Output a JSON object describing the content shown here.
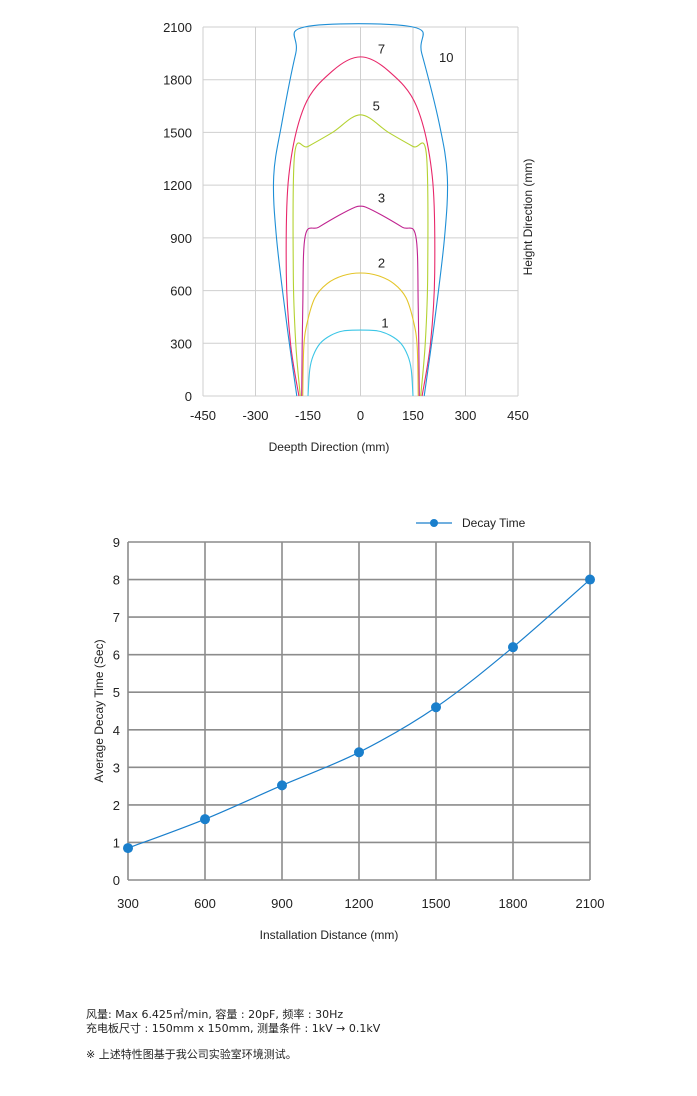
{
  "chart_data": [
    {
      "type": "line",
      "xlabel": "Deepth Direction (mm)",
      "ylabel": "Height Direction (mm)",
      "xlim": [
        -450,
        450
      ],
      "ylim": [
        0,
        2100
      ],
      "x_ticks": [
        "-450",
        "-300",
        "-150",
        "0",
        "150",
        "300",
        "450"
      ],
      "x_tick_values": [
        -450,
        -300,
        -150,
        0,
        150,
        300,
        450
      ],
      "y_ticks": [
        "0",
        "300",
        "600",
        "900",
        "1200",
        "1500",
        "1800",
        "2100"
      ],
      "y_tick_values": [
        0,
        300,
        600,
        900,
        1200,
        1500,
        1800,
        2100
      ],
      "grid": true,
      "series": [
        {
          "name": "1",
          "color": "#3cc6e6",
          "x": [
            -150,
            -145,
            -135,
            -115,
            -85,
            -50,
            0,
            50,
            85,
            115,
            135,
            145,
            150
          ],
          "y": [
            0,
            150,
            230,
            300,
            345,
            370,
            375,
            370,
            345,
            300,
            230,
            150,
            0
          ]
        },
        {
          "name": "2",
          "color": "#e4c52a",
          "x": [
            -165,
            -162,
            -152,
            -130,
            -95,
            -50,
            0,
            50,
            95,
            130,
            152,
            162,
            165
          ],
          "y": [
            0,
            280,
            420,
            560,
            640,
            685,
            700,
            685,
            640,
            560,
            420,
            280,
            0
          ]
        },
        {
          "name": "3",
          "color": "#c02490",
          "x": [
            -168,
            -165,
            -158,
            -120,
            -60,
            -15,
            0,
            15,
            60,
            120,
            158,
            165,
            168
          ],
          "y": [
            0,
            500,
            910,
            960,
            1030,
            1075,
            1080,
            1075,
            1030,
            960,
            910,
            500,
            0
          ]
        },
        {
          "name": "5",
          "color": "#b4d232",
          "x": [
            -172,
            -185,
            -192,
            -188,
            -150,
            -80,
            0,
            80,
            150,
            188,
            192,
            185,
            172
          ],
          "y": [
            0,
            300,
            700,
            1380,
            1420,
            1500,
            1600,
            1500,
            1420,
            1380,
            700,
            300,
            0
          ]
        },
        {
          "name": "7",
          "color": "#e8286a",
          "x": [
            -176,
            -200,
            -212,
            -205,
            -160,
            -80,
            0,
            80,
            160,
            205,
            212,
            200,
            176
          ],
          "y": [
            0,
            300,
            700,
            1250,
            1650,
            1850,
            1930,
            1850,
            1650,
            1250,
            700,
            300,
            0
          ]
        },
        {
          "name": "10",
          "color": "#1f8fd6",
          "x": [
            -182,
            -210,
            -240,
            -248,
            -225,
            -185,
            -160,
            150,
            175,
            225,
            248,
            240,
            210,
            182
          ],
          "y": [
            0,
            400,
            900,
            1250,
            1550,
            1950,
            2100,
            2100,
            1950,
            1550,
            1250,
            900,
            400,
            0
          ]
        }
      ],
      "curve_labels": [
        {
          "text": "1",
          "x": 70,
          "y": 390
        },
        {
          "text": "2",
          "x": 60,
          "y": 730
        },
        {
          "text": "3",
          "x": 60,
          "y": 1100
        },
        {
          "text": "5",
          "x": 45,
          "y": 1625
        },
        {
          "text": "7",
          "x": 60,
          "y": 1950
        },
        {
          "text": "10",
          "x": 245,
          "y": 1900
        }
      ]
    },
    {
      "type": "line",
      "xlabel": "Installation Distance (mm)",
      "ylabel": "Average Decay Time (Sec)",
      "legend": "top-right",
      "categories": [
        "300",
        "600",
        "900",
        "1200",
        "1500",
        "1800",
        "2100"
      ],
      "x": [
        300,
        600,
        900,
        1200,
        1500,
        1800,
        2100
      ],
      "xlim": [
        300,
        2100
      ],
      "ylim": [
        0,
        9
      ],
      "y_ticks": [
        "0",
        "1",
        "2",
        "3",
        "4",
        "5",
        "6",
        "7",
        "8",
        "9"
      ],
      "grid": true,
      "series": [
        {
          "name": "Decay Time",
          "color": "#1a7fcc",
          "values": [
            0.85,
            1.62,
            2.52,
            3.4,
            4.6,
            6.2,
            8.0
          ]
        }
      ]
    }
  ],
  "footnotes": {
    "line1": "风量: Max 6.425㎥/min, 容量 : 20pF, 频率 : 30Hz",
    "line2": "充电板尺寸 : 150mm x 150mm, 测量条件 : 1kV → 0.1kV",
    "line3": "※ 上述特性图基于我公司实验室环境测试。"
  }
}
